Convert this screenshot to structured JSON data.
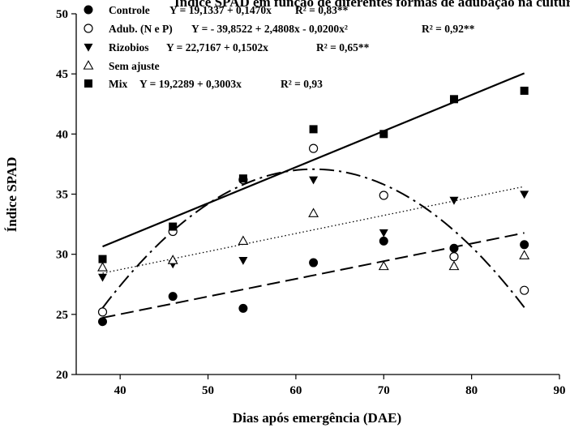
{
  "chart_data": {
    "type": "scatter",
    "title": "Índice SPAD em função de diferentes formas de adubação na cultura do feijão-caupi em função de dias após emergência",
    "xlabel": "Dias após emergência (DAE)",
    "ylabel": "Índice SPAD",
    "xlim": [
      35,
      90
    ],
    "ylim": [
      20,
      50
    ],
    "x_ticks": [
      40,
      50,
      60,
      70,
      80,
      90
    ],
    "y_ticks": [
      20,
      25,
      30,
      35,
      40,
      45,
      50
    ],
    "legend_position": "top-left",
    "x": [
      38,
      46,
      54,
      62,
      70,
      78,
      86
    ],
    "series": [
      {
        "name": "Controle",
        "marker": "filled-circle",
        "values": [
          24.4,
          26.5,
          25.5,
          29.3,
          31.1,
          30.5,
          30.8
        ],
        "fit": {
          "kind": "linear",
          "coef": [
            19.1337,
            0.147
          ],
          "style": "long-dash"
        },
        "equation": "Y = 19,1337 + 0,1470x",
        "r2": "R² = 0,83**"
      },
      {
        "name": "Adub. (N e P)",
        "marker": "open-circle",
        "values": [
          25.2,
          31.9,
          36.2,
          38.8,
          34.9,
          29.8,
          27.0
        ],
        "fit": {
          "kind": "quadratic",
          "coef": [
            -39.8522,
            2.4808,
            -0.02
          ],
          "style": "dash-dot"
        },
        "equation": "Y = - 39,8522 + 2,4808x - 0,0200x²",
        "r2": "R² = 0,92**"
      },
      {
        "name": "Rizobios",
        "marker": "filled-triangle-down",
        "values": [
          28.1,
          29.2,
          29.5,
          36.2,
          31.8,
          34.5,
          35.0
        ],
        "fit": {
          "kind": "linear",
          "coef": [
            22.7167,
            0.1502
          ],
          "style": "dotted"
        },
        "equation": "Y = 22,7167 + 0,1502x",
        "r2": "R² = 0,65**"
      },
      {
        "name": "Sem ajuste",
        "marker": "open-triangle-up",
        "values": [
          28.9,
          29.5,
          31.1,
          33.4,
          29.0,
          29.0,
          29.9
        ],
        "fit": null,
        "equation": "",
        "r2": ""
      },
      {
        "name": "Mix",
        "marker": "filled-square",
        "values": [
          29.6,
          32.3,
          36.3,
          40.4,
          40.0,
          42.9,
          43.6
        ],
        "fit": {
          "kind": "linear",
          "coef": [
            19.2289,
            0.3003
          ],
          "style": "solid"
        },
        "equation": "Y = 19,2289 + 0,3003x",
        "r2": "R² = 0,93"
      }
    ]
  }
}
